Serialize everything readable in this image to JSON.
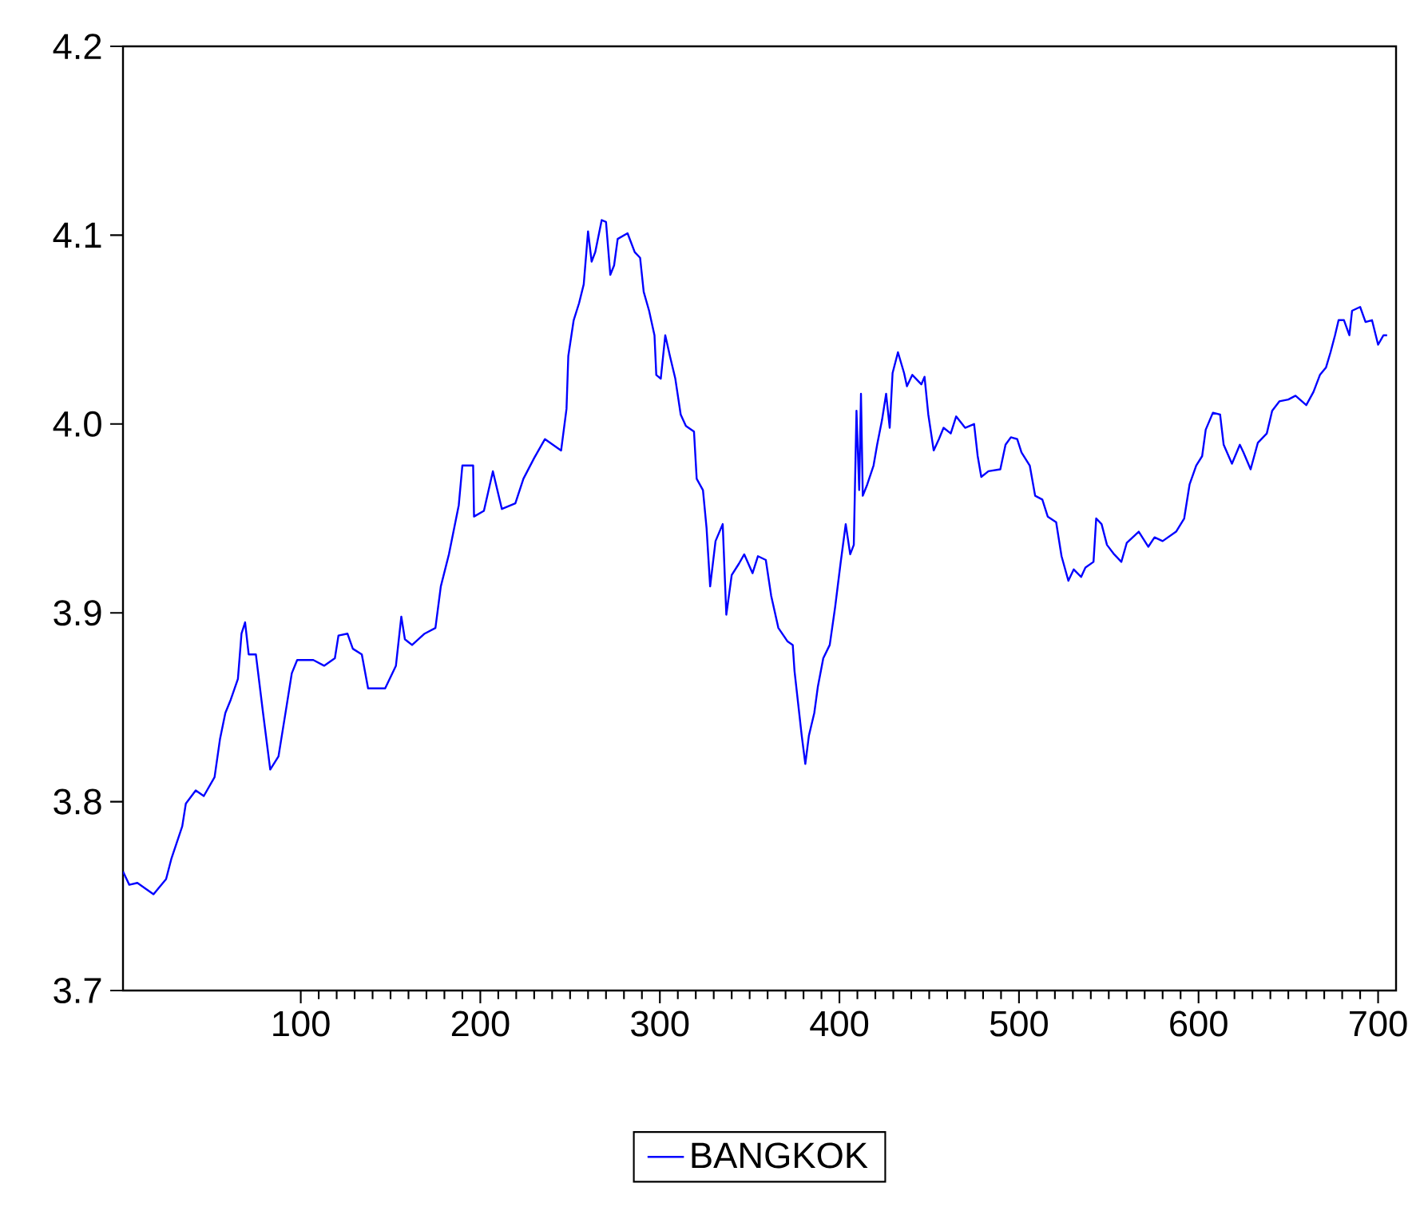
{
  "chart_data": {
    "type": "line",
    "xlim": [
      1,
      710
    ],
    "ylim": [
      3.7,
      4.2
    ],
    "xticks": [
      100,
      200,
      300,
      400,
      500,
      600,
      700
    ],
    "yticks": [
      3.7,
      3.8,
      3.9,
      {
        "value": 4.0,
        "label": "4.0"
      },
      4.1,
      4.2
    ],
    "grid": false,
    "legend": "bottom",
    "marker": "none",
    "line_style": "solid",
    "series": [
      {
        "name": "BANGKOK",
        "color": "#0000ff",
        "x": [
          1,
          4.5,
          9,
          18,
          25,
          28,
          34,
          36,
          41.5,
          46,
          52,
          55,
          58,
          61,
          65,
          67,
          69,
          71,
          75,
          79,
          83,
          87.6,
          92,
          95,
          98,
          107,
          113,
          119,
          121,
          126,
          129,
          134,
          137.5,
          147,
          153,
          156,
          158,
          162,
          169,
          175,
          178,
          182.5,
          188,
          190,
          196,
          196.5,
          202,
          207,
          212,
          219.5,
          224,
          230,
          236,
          245,
          248,
          249,
          252,
          255,
          257.6,
          260,
          262,
          264,
          267.6,
          270,
          272.4,
          274.5,
          276.5,
          282,
          286,
          289,
          291,
          294,
          297,
          298,
          300.5,
          303,
          305.6,
          308.6,
          311.6,
          314.5,
          319,
          320.5,
          324,
          326,
          328,
          331,
          335,
          337,
          340,
          344,
          347,
          351.6,
          354.6,
          359,
          362,
          366,
          371,
          374,
          375,
          377,
          379,
          381,
          383,
          386,
          388,
          391,
          394.6,
          397.6,
          400.6,
          403.5,
          406,
          408,
          409.5,
          411,
          412,
          413,
          415.5,
          419,
          421,
          423.7,
          426,
          428,
          429.6,
          432.6,
          436,
          437.6,
          440.6,
          445.6,
          447.4,
          449.5,
          452.5,
          455.4,
          458,
          462,
          465,
          470,
          475,
          477,
          479,
          483,
          489.6,
          492.5,
          495.5,
          499,
          501.4,
          506,
          509,
          513,
          516,
          520.7,
          523.7,
          527.5,
          530.5,
          534.6,
          537,
          541.5,
          543,
          546,
          549,
          553,
          557,
          560,
          566.7,
          572,
          575.5,
          580,
          587.5,
          592,
          595,
          598.7,
          602,
          604,
          608,
          612,
          614,
          618.6,
          623,
          625,
          629,
          633,
          638,
          641,
          645,
          650,
          654,
          660,
          664,
          667.6,
          671,
          673.5,
          676,
          678,
          681,
          684,
          685.5,
          690,
          693,
          696.6,
          700,
          703,
          705
        ],
        "values": [
          3.763,
          3.756,
          3.757,
          3.751,
          3.759,
          3.77,
          3.787,
          3.799,
          3.806,
          3.803,
          3.813,
          3.833,
          3.847,
          3.854,
          3.865,
          3.889,
          3.895,
          3.878,
          3.878,
          3.847,
          3.817,
          3.824,
          3.85,
          3.868,
          3.875,
          3.875,
          3.872,
          3.876,
          3.888,
          3.889,
          3.881,
          3.878,
          3.86,
          3.86,
          3.872,
          3.898,
          3.886,
          3.883,
          3.889,
          3.892,
          3.914,
          3.931,
          3.957,
          3.978,
          3.978,
          3.951,
          3.954,
          3.975,
          3.955,
          3.958,
          3.971,
          3.982,
          3.992,
          3.986,
          4.008,
          4.036,
          4.055,
          4.064,
          4.074,
          4.102,
          4.086,
          4.091,
          4.108,
          4.107,
          4.079,
          4.084,
          4.098,
          4.101,
          4.091,
          4.088,
          4.07,
          4.06,
          4.047,
          4.026,
          4.024,
          4.047,
          4.036,
          4.024,
          4.005,
          3.999,
          3.996,
          3.971,
          3.965,
          3.945,
          3.914,
          3.938,
          3.947,
          3.899,
          3.92,
          3.926,
          3.931,
          3.921,
          3.93,
          3.928,
          3.909,
          3.892,
          3.885,
          3.883,
          3.869,
          3.852,
          3.835,
          3.82,
          3.835,
          3.847,
          3.861,
          3.876,
          3.883,
          3.903,
          3.926,
          3.947,
          3.931,
          3.936,
          4.007,
          3.965,
          4.016,
          3.962,
          3.968,
          3.978,
          3.989,
          4.002,
          4.016,
          3.998,
          4.027,
          4.038,
          4.027,
          4.02,
          4.026,
          4.021,
          4.025,
          4.005,
          3.986,
          3.992,
          3.998,
          3.995,
          4.004,
          3.998,
          4.0,
          3.983,
          3.972,
          3.975,
          3.976,
          3.989,
          3.993,
          3.992,
          3.985,
          3.978,
          3.962,
          3.96,
          3.951,
          3.948,
          3.93,
          3.917,
          3.923,
          3.919,
          3.924,
          3.927,
          3.95,
          3.947,
          3.936,
          3.931,
          3.927,
          3.937,
          3.943,
          3.935,
          3.94,
          3.938,
          3.943,
          3.95,
          3.968,
          3.978,
          3.983,
          3.997,
          4.006,
          4.005,
          3.989,
          3.979,
          3.989,
          3.985,
          3.976,
          3.99,
          3.995,
          4.007,
          4.012,
          4.013,
          4.015,
          4.01,
          4.017,
          4.026,
          4.03,
          4.038,
          4.047,
          4.055,
          4.055,
          4.047,
          4.06,
          4.062,
          4.054,
          4.055,
          4.042,
          4.047,
          4.047
        ]
      }
    ]
  }
}
